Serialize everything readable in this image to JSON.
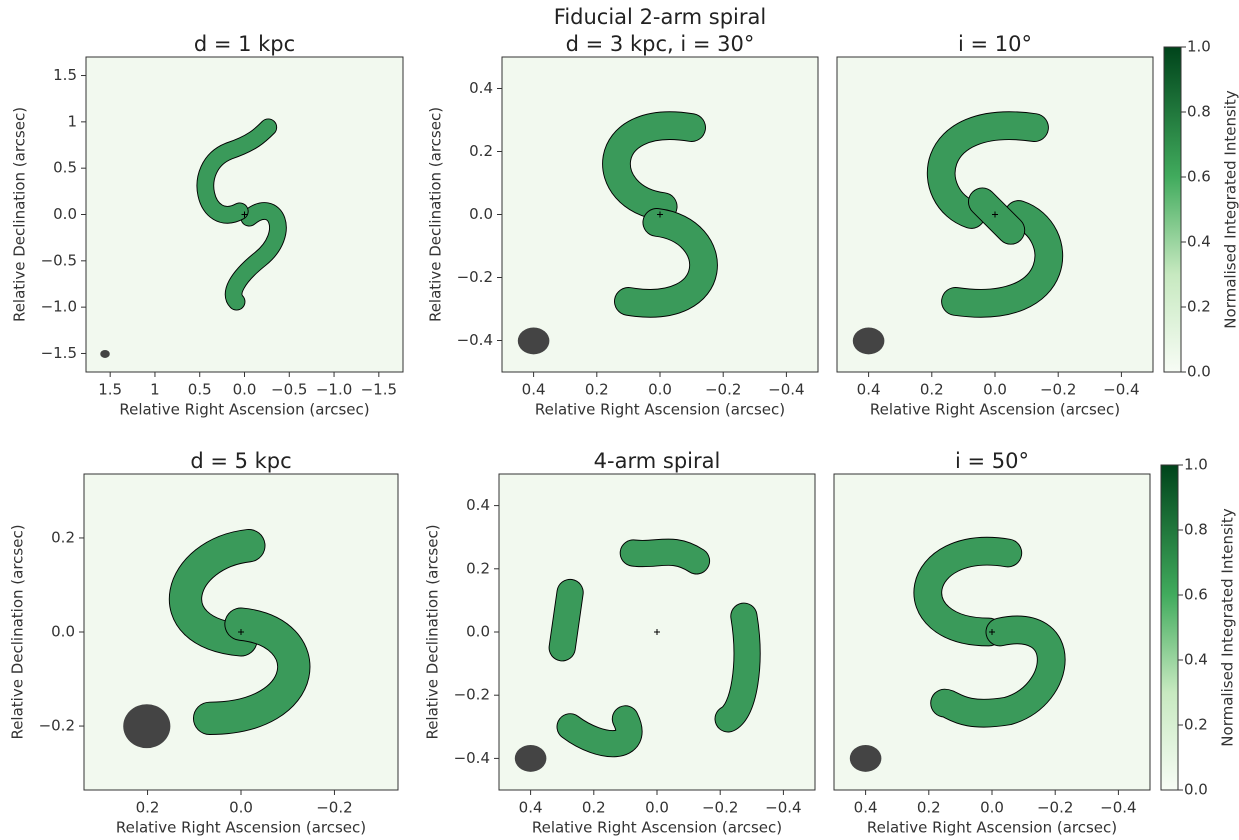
{
  "title": "Fiducial 2-arm spiral",
  "chart_data": [
    {
      "type": "image",
      "title": "d = 1 kpc",
      "xlabel": "Relative Right Ascension (arcsec)",
      "ylabel": "Relative Declination (arcsec)",
      "xlim": [
        1.77,
        -1.77
      ],
      "ylim": [
        -1.7,
        1.7
      ],
      "xticks": [
        1.5,
        1.0,
        0.5,
        {
          "value": 0,
          "label": "0.0"
        },
        {
          "value": -0.5,
          "label": "−0.5"
        },
        {
          "value": -1.0,
          "label": "−1.0"
        },
        {
          "value": -1.5,
          "label": "−1.5"
        }
      ],
      "yticks": [
        {
          "value": -1.5,
          "label": "−1.5"
        },
        {
          "value": -1.0,
          "label": "−1.0"
        },
        {
          "value": -0.5,
          "label": "−0.5"
        },
        {
          "value": 0,
          "label": "0.0"
        },
        0.5,
        1.0,
        1.5
      ]
    },
    {
      "type": "image",
      "title": "d = 3 kpc, i = 30°",
      "xlabel": "Relative Right Ascension (arcsec)",
      "ylabel": "Relative Declination (arcsec)",
      "xlim": [
        0.5,
        -0.5
      ],
      "ylim": [
        -0.5,
        0.5
      ],
      "xticks": [
        0.4,
        0.2,
        {
          "value": 0,
          "label": "0.0"
        },
        {
          "value": -0.2,
          "label": "−0.2"
        },
        {
          "value": -0.4,
          "label": "−0.4"
        }
      ],
      "yticks": [
        {
          "value": -0.4,
          "label": "−0.4"
        },
        {
          "value": -0.2,
          "label": "−0.2"
        },
        {
          "value": 0,
          "label": "0.0"
        },
        0.2,
        0.4
      ]
    },
    {
      "type": "image",
      "title": "i = 10°",
      "xlabel": "Relative Right Ascension (arcsec)",
      "xlim": [
        0.5,
        -0.5
      ],
      "ylim": [
        -0.5,
        0.5
      ],
      "xticks": [
        0.4,
        0.2,
        {
          "value": 0,
          "label": "0.0"
        },
        {
          "value": -0.2,
          "label": "−0.2"
        },
        {
          "value": -0.4,
          "label": "−0.4"
        }
      ],
      "colorbar": {
        "label": "Normalised Integrated Intensity",
        "lim": [
          0,
          1
        ],
        "ticks": [
          {
            "value": 0,
            "label": "0.0"
          },
          0.2,
          0.4,
          0.6,
          0.8,
          {
            "value": 1,
            "label": "1.0"
          }
        ]
      }
    },
    {
      "type": "image",
      "title": "d = 5 kpc",
      "xlabel": "Relative Right Ascension (arcsec)",
      "ylabel": "Relative Declination (arcsec)",
      "xlim": [
        0.336,
        -0.336
      ],
      "ylim": [
        -0.336,
        0.336
      ],
      "xticks": [
        0.2,
        {
          "value": 0,
          "label": "0.0"
        },
        {
          "value": -0.2,
          "label": "−0.2"
        }
      ],
      "yticks": [
        {
          "value": -0.2,
          "label": "−0.2"
        },
        {
          "value": 0,
          "label": "0.0"
        },
        0.2
      ]
    },
    {
      "type": "image",
      "title": "4-arm spiral",
      "xlabel": "Relative Right Ascension (arcsec)",
      "ylabel": "Relative Declination (arcsec)",
      "xlim": [
        0.5,
        -0.5
      ],
      "ylim": [
        -0.5,
        0.5
      ],
      "xticks": [
        0.4,
        0.2,
        {
          "value": 0,
          "label": "0.0"
        },
        {
          "value": -0.2,
          "label": "−0.2"
        },
        {
          "value": -0.4,
          "label": "−0.4"
        }
      ],
      "yticks": [
        {
          "value": -0.4,
          "label": "−0.4"
        },
        {
          "value": -0.2,
          "label": "−0.2"
        },
        {
          "value": 0,
          "label": "0.0"
        },
        0.2,
        0.4
      ]
    },
    {
      "type": "image",
      "title": "i = 50°",
      "xlabel": "Relative Right Ascension (arcsec)",
      "xlim": [
        0.5,
        -0.5
      ],
      "ylim": [
        -0.5,
        0.5
      ],
      "xticks": [
        0.4,
        0.2,
        {
          "value": 0,
          "label": "0.0"
        },
        {
          "value": -0.2,
          "label": "−0.2"
        },
        {
          "value": -0.4,
          "label": "−0.4"
        }
      ],
      "colorbar": {
        "label": "Normalised Integrated Intensity",
        "lim": [
          0,
          1
        ],
        "ticks": [
          {
            "value": 0,
            "label": "0.0"
          },
          0.2,
          0.4,
          0.6,
          0.8,
          {
            "value": 1,
            "label": "1.0"
          }
        ]
      }
    }
  ]
}
